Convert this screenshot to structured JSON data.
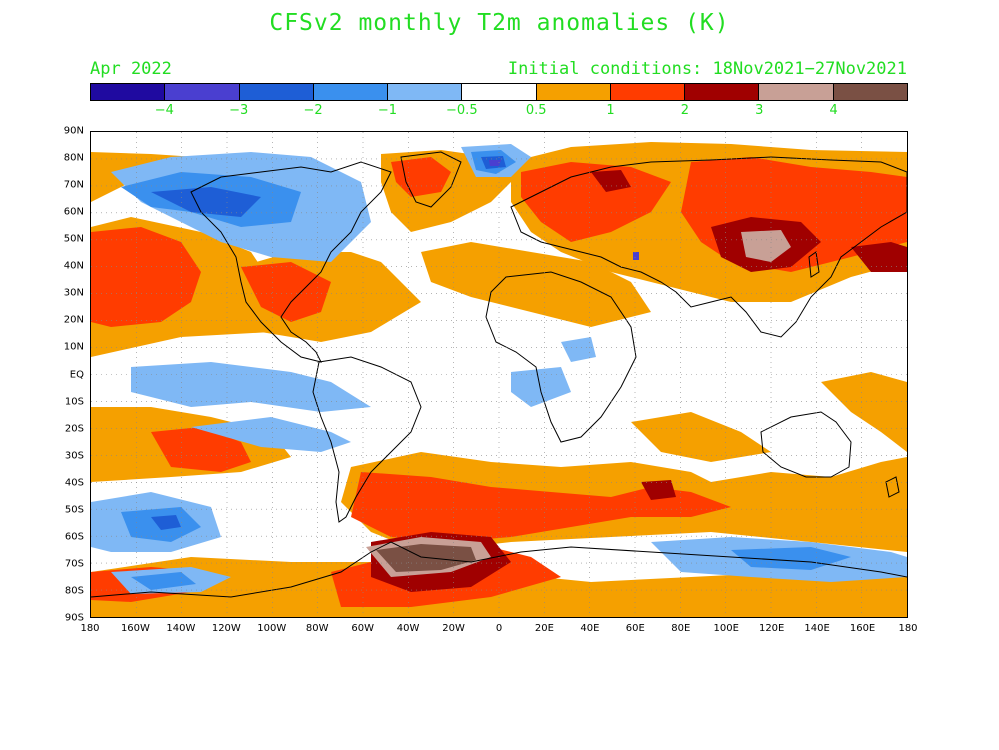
{
  "title": "CFSv2 monthly T2m anomalies (K)",
  "valid_month": "Apr 2022",
  "initial_conditions": "Initial conditions: 18Nov2021−27Nov2021",
  "colorbar": {
    "colors": [
      "#1f0aa0",
      "#4a3fd0",
      "#1e5ed6",
      "#3a90ee",
      "#7fb8f5",
      "#ffffff",
      "#f5a000",
      "#ff3c00",
      "#a00000",
      "#c8a096",
      "#7a5044"
    ],
    "labels": [
      "−4",
      "−3",
      "−2",
      "−1",
      "−0.5",
      "0.5",
      "1",
      "2",
      "3",
      "4"
    ]
  },
  "axes": {
    "lat_labels": [
      "90N",
      "80N",
      "70N",
      "60N",
      "50N",
      "40N",
      "30N",
      "20N",
      "10N",
      "EQ",
      "10S",
      "20S",
      "30S",
      "40S",
      "50S",
      "60S",
      "70S",
      "80S",
      "90S"
    ],
    "lon_labels": [
      "180",
      "160W",
      "140W",
      "120W",
      "100W",
      "80W",
      "60W",
      "40W",
      "20W",
      "0",
      "20E",
      "40E",
      "60E",
      "80E",
      "100E",
      "120E",
      "140E",
      "160E",
      "180"
    ],
    "grid": "dotted"
  },
  "map_data": {
    "type": "filled-contour anomaly map",
    "variable": "T2m anomalies",
    "units": "K",
    "regions": [
      {
        "area": "Alaska / western Canada",
        "anomaly_class": "cold",
        "level": "-0.5 to -2"
      },
      {
        "area": "Greenland / Arctic Atlantic",
        "anomaly_class": "cold",
        "level": "-0.5 to -4"
      },
      {
        "area": "Eastern North Pacific",
        "anomaly_class": "warm",
        "level": "1 to 2"
      },
      {
        "area": "Eastern USA / Mexico",
        "anomaly_class": "warm",
        "level": "1 to 2"
      },
      {
        "area": "Europe / western Russia",
        "anomaly_class": "warm",
        "level": "1 to 3"
      },
      {
        "area": "Central Asia / Mongolia",
        "anomaly_class": "warm",
        "level": "2 to 4"
      },
      {
        "area": "Southern Ocean",
        "anomaly_class": "warm",
        "level": "0.5 to 2"
      },
      {
        "area": "Weddell Sea / Antarctic Peninsula",
        "anomaly_class": "warm",
        "level": "3 to >4"
      },
      {
        "area": "Ross Sea / East Antarctica coast",
        "anomaly_class": "cold",
        "level": "-0.5 to -1"
      },
      {
        "area": "Tropical East Pacific",
        "anomaly_class": "cold",
        "level": "-0.5 to -1"
      },
      {
        "area": "South Pacific subtropics",
        "anomaly_class": "warm",
        "level": "0.5 to 2"
      }
    ]
  }
}
